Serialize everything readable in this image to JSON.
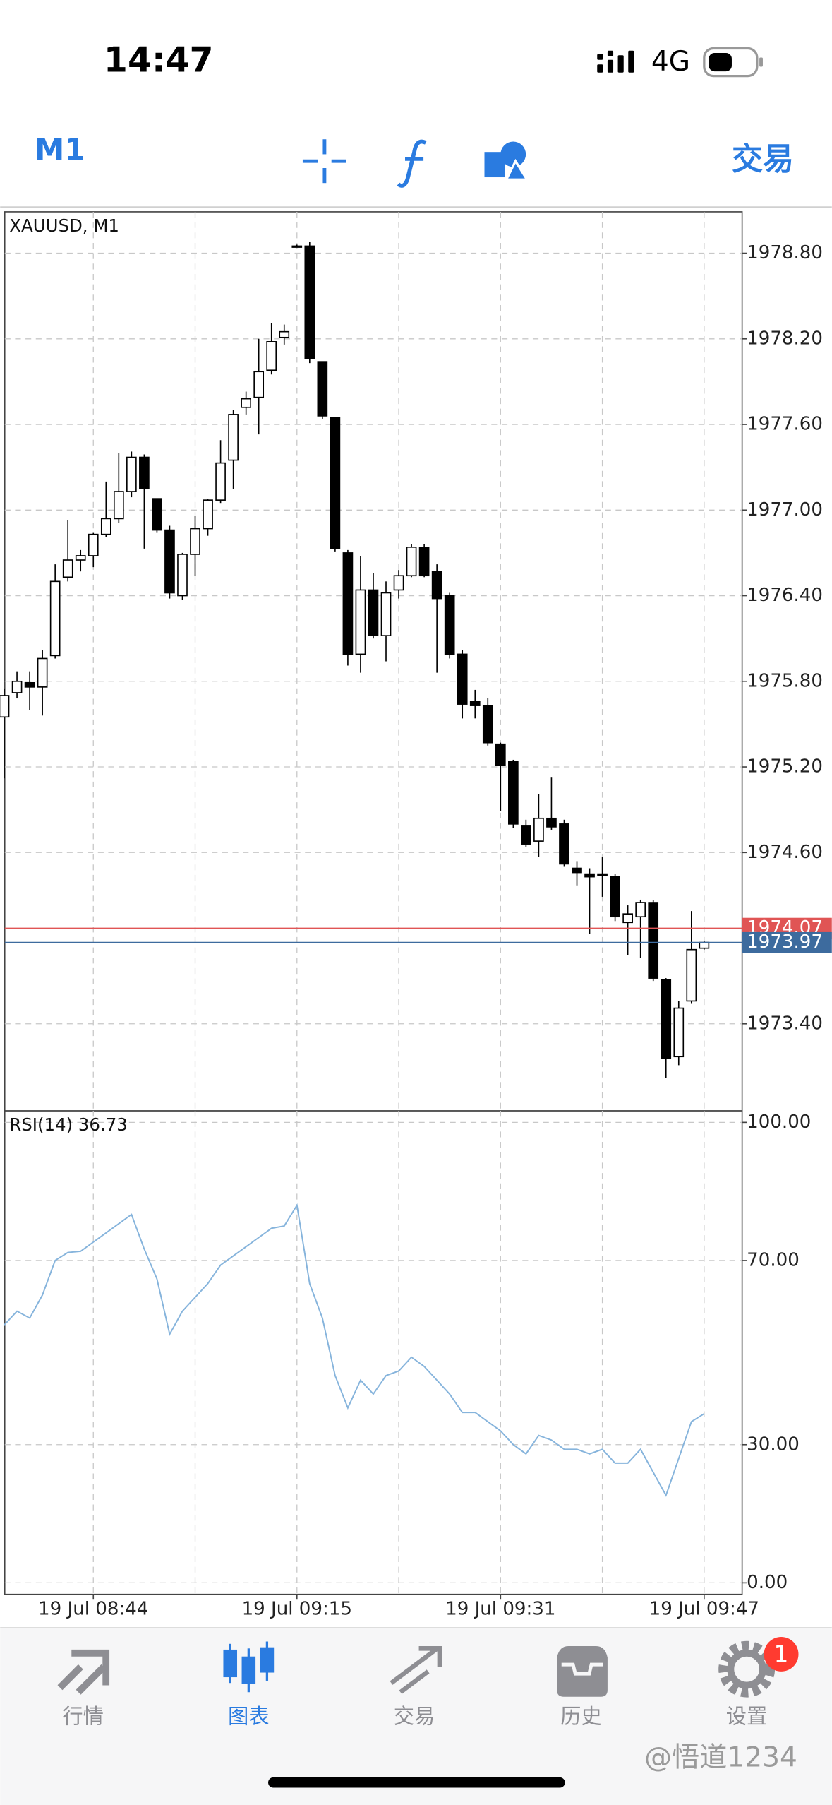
{
  "status_bar": {
    "time": "14:47",
    "network": "4G"
  },
  "toolbar": {
    "timeframe": "M1",
    "trade": "交易"
  },
  "chart_data": [
    {
      "type": "candlestick",
      "title": "XAUUSD, M1",
      "categories": [
        null,
        null,
        null,
        null,
        null,
        null,
        null,
        "19 Jul 08:44",
        null,
        null,
        null,
        null,
        null,
        null,
        null,
        null,
        null,
        null,
        null,
        null,
        null,
        null,
        null,
        "19 Jul 09:15",
        null,
        null,
        null,
        null,
        null,
        null,
        null,
        null,
        null,
        null,
        null,
        null,
        null,
        null,
        null,
        "19 Jul 09:31",
        null,
        null,
        null,
        null,
        null,
        null,
        null,
        null,
        null,
        null,
        null,
        null,
        null,
        null,
        null,
        "19 Jul 09:47"
      ],
      "open": [
        1975.55,
        1975.72,
        1975.79,
        1975.76,
        1975.98,
        1976.53,
        1976.65,
        1976.68,
        1976.83,
        1976.94,
        1977.13,
        1977.37,
        1977.08,
        1976.86,
        1976.4,
        1976.69,
        1976.87,
        1977.07,
        1977.35,
        1977.72,
        1977.79,
        1977.98,
        1978.21,
        1978.85,
        1978.85,
        1978.04,
        1977.65,
        1976.7,
        1975.99,
        1976.44,
        1976.12,
        1976.44,
        1976.54,
        1976.74,
        1976.57,
        1976.4,
        1975.99,
        1975.66,
        1975.63,
        1975.36,
        1975.24,
        1974.79,
        1974.68,
        1974.84,
        1974.8,
        1974.49,
        1974.45,
        1974.45,
        1974.43,
        1974.11,
        1974.15,
        1974.25,
        1973.71,
        1973.17,
        1973.56,
        1973.93
      ],
      "high": [
        1975.75,
        1975.87,
        1975.87,
        1976.02,
        1976.62,
        1976.93,
        1976.72,
        1976.84,
        1977.2,
        1977.4,
        1977.41,
        1977.39,
        1977.08,
        1976.89,
        1976.7,
        1976.96,
        1977.08,
        1977.49,
        1977.7,
        1977.83,
        1978.2,
        1978.31,
        1978.3,
        1978.86,
        1978.88,
        1978.04,
        1977.65,
        1976.72,
        1976.68,
        1976.56,
        1976.5,
        1976.58,
        1976.76,
        1976.76,
        1976.62,
        1976.42,
        1976.02,
        1975.74,
        1975.68,
        1975.37,
        1975.25,
        1974.83,
        1975.01,
        1975.13,
        1974.83,
        1974.54,
        1974.49,
        1974.57,
        1974.45,
        1974.23,
        1974.27,
        1974.27,
        1973.72,
        1973.56,
        1974.19,
        1973.98
      ],
      "low": [
        1975.12,
        1975.68,
        1975.6,
        1975.56,
        1975.96,
        1976.5,
        1976.57,
        1976.6,
        1976.81,
        1976.91,
        1977.09,
        1976.73,
        1976.84,
        1976.38,
        1976.37,
        1976.54,
        1976.82,
        1977.05,
        1977.15,
        1977.67,
        1977.53,
        1977.95,
        1978.16,
        1978.85,
        1978.03,
        1977.64,
        1976.71,
        1975.91,
        1975.86,
        1976.1,
        1975.94,
        1976.38,
        1976.53,
        1976.53,
        1975.86,
        1975.96,
        1975.54,
        1975.54,
        1975.35,
        1974.89,
        1974.77,
        1974.64,
        1974.57,
        1974.76,
        1974.5,
        1974.37,
        1974.03,
        1974.29,
        1974.12,
        1973.88,
        1973.86,
        1973.7,
        1973.02,
        1973.11,
        1973.54,
        1973.92
      ],
      "close": [
        1975.7,
        1975.8,
        1975.76,
        1975.96,
        1976.5,
        1976.65,
        1976.68,
        1976.83,
        1976.94,
        1977.13,
        1977.37,
        1977.15,
        1976.86,
        1976.42,
        1976.69,
        1976.87,
        1977.07,
        1977.33,
        1977.67,
        1977.78,
        1977.97,
        1978.18,
        1978.25,
        1978.85,
        1978.06,
        1977.66,
        1976.73,
        1975.99,
        1976.44,
        1976.12,
        1976.42,
        1976.54,
        1976.74,
        1976.54,
        1976.38,
        1975.99,
        1975.64,
        1975.63,
        1975.37,
        1975.21,
        1974.8,
        1974.66,
        1974.84,
        1974.78,
        1974.52,
        1974.46,
        1974.43,
        1974.44,
        1974.15,
        1974.17,
        1974.25,
        1973.72,
        1973.16,
        1973.51,
        1973.92,
        1973.97
      ],
      "up_color": "#ffffff",
      "down_color": "#000000",
      "edge_color": "#000000",
      "ylim": [
        1972.79,
        1979.09
      ],
      "yticks": [
        {
          "value": 1978.8,
          "label": "1978.80"
        },
        {
          "value": 1978.2,
          "label": "1978.20"
        },
        {
          "value": 1977.6,
          "label": "1977.60"
        },
        {
          "value": 1977.0,
          "label": "1977.00"
        },
        {
          "value": 1976.4,
          "label": "1976.40"
        },
        {
          "value": 1975.8,
          "label": "1975.80"
        },
        {
          "value": 1975.2,
          "label": "1975.20"
        },
        {
          "value": 1974.6,
          "label": "1974.60"
        },
        {
          "value": 1973.4,
          "label": "1973.40"
        }
      ],
      "price_lines": [
        {
          "value": 1974.07,
          "label": "1974.07",
          "color": "#e05555"
        },
        {
          "value": 1973.97,
          "label": "1973.97",
          "color": "#3d6b9e"
        }
      ],
      "grid": true
    },
    {
      "type": "line",
      "title": "RSI(14) 36.73",
      "values": [
        56,
        59,
        57.5,
        62.5,
        70,
        71.75,
        72,
        74,
        76,
        78,
        80,
        72.5,
        66,
        54,
        59,
        62,
        65,
        69,
        71,
        73,
        75,
        77,
        77.5,
        82,
        65,
        57.5,
        45,
        38,
        44,
        41,
        45,
        46,
        49,
        47,
        44,
        41,
        37,
        37,
        35,
        33,
        30,
        28,
        32,
        31,
        29,
        29,
        28,
        29,
        26,
        26,
        29,
        24,
        19,
        27,
        35,
        36.73
      ],
      "color": "#86b4dc",
      "ylim": [
        -2.5,
        102.5
      ],
      "yticks": [
        {
          "value": 100,
          "label": "100.00"
        },
        {
          "value": 70,
          "label": "70.00"
        },
        {
          "value": 30,
          "label": "30.00"
        },
        {
          "value": 0,
          "label": "0.00"
        }
      ],
      "grid": true
    }
  ],
  "tabs": [
    "行情",
    "图表",
    "交易",
    "历史",
    "设置"
  ],
  "badge": "1",
  "watermark": "@悟道1234"
}
